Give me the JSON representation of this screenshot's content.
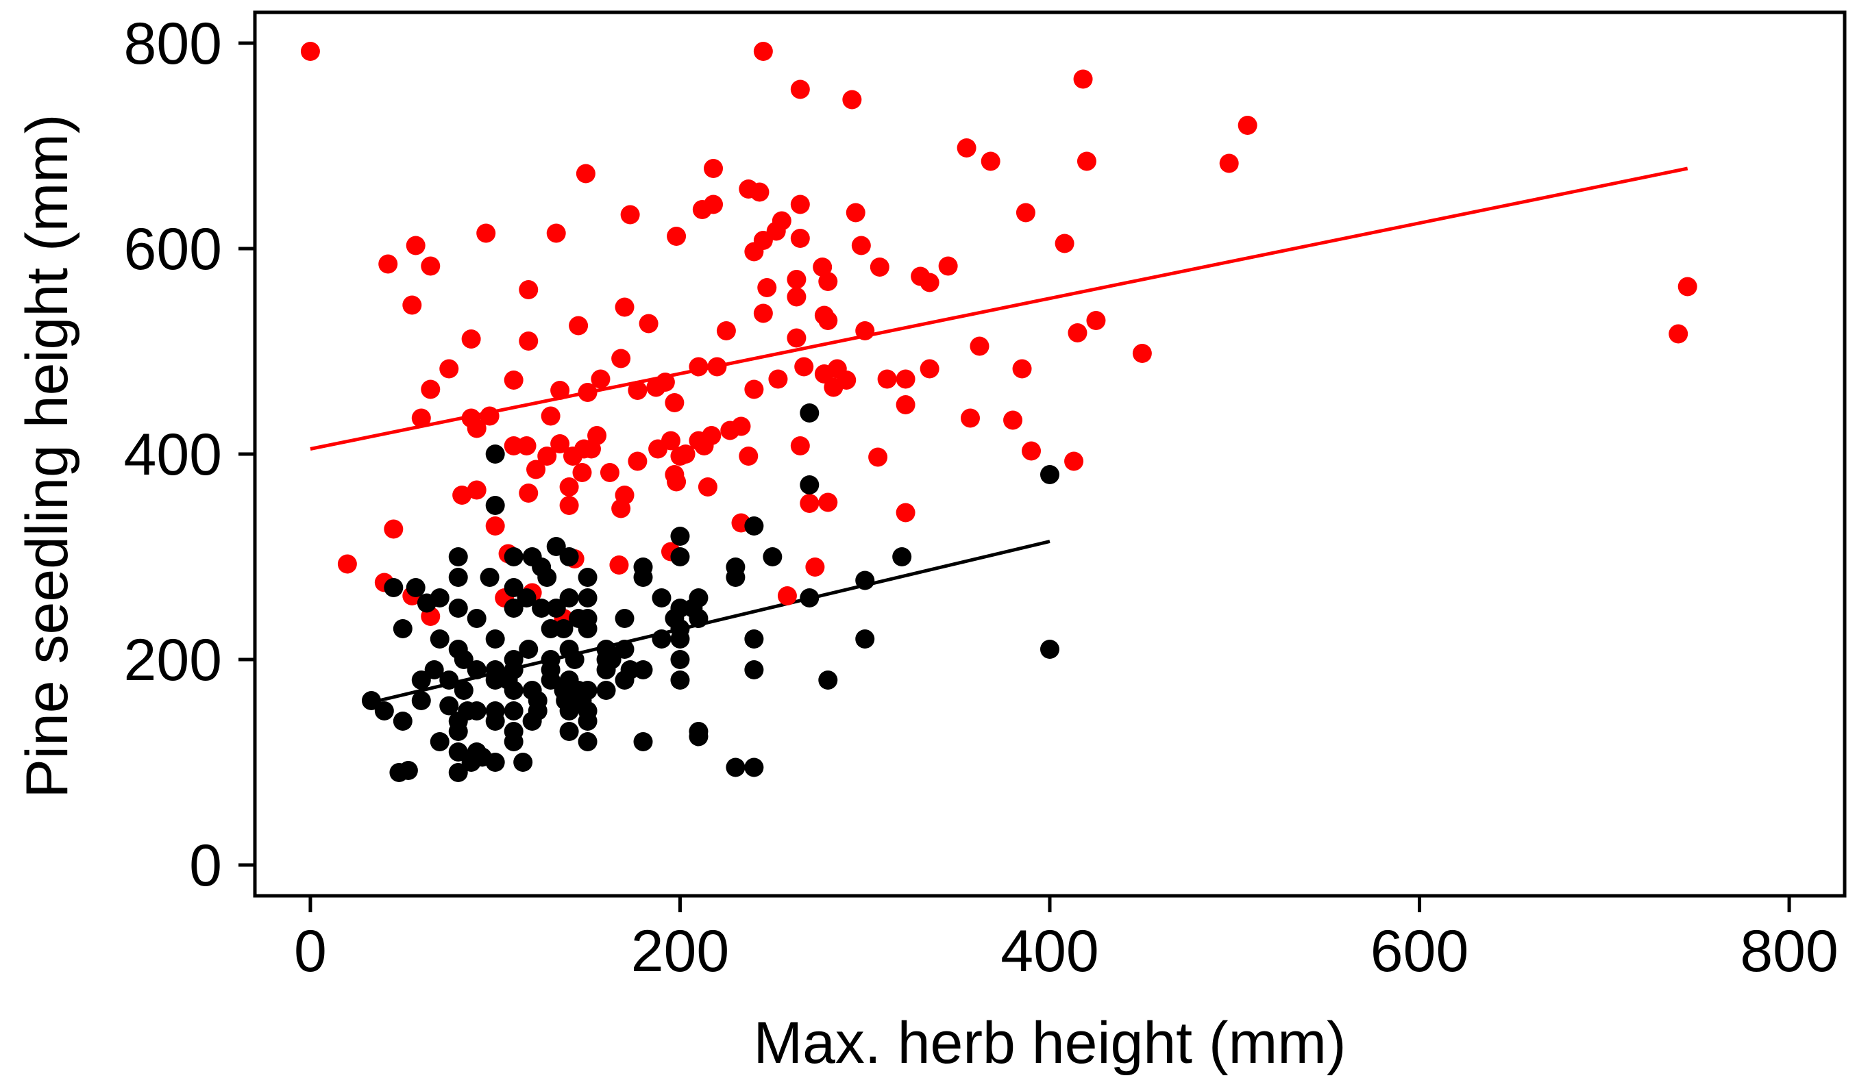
{
  "chart_data": {
    "type": "scatter",
    "title": "",
    "xlabel": "Max. herb height (mm)",
    "ylabel": "Pine seedling height (mm)",
    "xlim": [
      -30,
      830
    ],
    "ylim": [
      -30,
      830
    ],
    "x_ticks": [
      0,
      200,
      400,
      600,
      800
    ],
    "y_ticks": [
      0,
      200,
      400,
      600,
      800
    ],
    "x_tick_labels": [
      "0",
      "200",
      "400",
      "600",
      "800"
    ],
    "y_tick_labels": [
      "0",
      "200",
      "400",
      "600",
      "800"
    ],
    "grid": false,
    "legend": "none",
    "series": [
      {
        "color": "#ff0000",
        "points": [
          [
            0,
            792
          ],
          [
            20,
            293
          ],
          [
            40,
            275
          ],
          [
            42,
            585
          ],
          [
            45,
            327
          ],
          [
            55,
            262
          ],
          [
            55,
            545
          ],
          [
            57,
            603
          ],
          [
            60,
            435
          ],
          [
            65,
            583
          ],
          [
            65,
            242
          ],
          [
            65,
            463
          ],
          [
            75,
            483
          ],
          [
            82,
            360
          ],
          [
            87,
            512
          ],
          [
            87,
            435
          ],
          [
            90,
            425
          ],
          [
            90,
            365
          ],
          [
            95,
            615
          ],
          [
            97,
            437
          ],
          [
            100,
            330
          ],
          [
            105,
            260
          ],
          [
            107,
            303
          ],
          [
            110,
            472
          ],
          [
            110,
            408
          ],
          [
            117,
            408
          ],
          [
            118,
            362
          ],
          [
            118,
            560
          ],
          [
            118,
            510
          ],
          [
            120,
            265
          ],
          [
            122,
            385
          ],
          [
            128,
            398
          ],
          [
            130,
            437
          ],
          [
            133,
            615
          ],
          [
            135,
            462
          ],
          [
            135,
            410
          ],
          [
            137,
            240
          ],
          [
            140,
            350
          ],
          [
            140,
            368
          ],
          [
            142,
            398
          ],
          [
            143,
            298
          ],
          [
            145,
            525
          ],
          [
            147,
            382
          ],
          [
            148,
            405
          ],
          [
            149,
            673
          ],
          [
            150,
            460
          ],
          [
            152,
            405
          ],
          [
            155,
            418
          ],
          [
            157,
            473
          ],
          [
            162,
            382
          ],
          [
            167,
            292
          ],
          [
            168,
            493
          ],
          [
            168,
            347
          ],
          [
            170,
            543
          ],
          [
            170,
            360
          ],
          [
            173,
            633
          ],
          [
            177,
            393
          ],
          [
            177,
            462
          ],
          [
            183,
            527
          ],
          [
            187,
            465
          ],
          [
            188,
            405
          ],
          [
            192,
            470
          ],
          [
            195,
            413
          ],
          [
            195,
            305
          ],
          [
            197,
            450
          ],
          [
            197,
            380
          ],
          [
            198,
            373
          ],
          [
            198,
            612
          ],
          [
            200,
            398
          ],
          [
            203,
            400
          ],
          [
            210,
            485
          ],
          [
            210,
            413
          ],
          [
            212,
            638
          ],
          [
            213,
            408
          ],
          [
            215,
            368
          ],
          [
            217,
            418
          ],
          [
            218,
            678
          ],
          [
            218,
            643
          ],
          [
            220,
            485
          ],
          [
            225,
            520
          ],
          [
            227,
            423
          ],
          [
            233,
            427
          ],
          [
            233,
            333
          ],
          [
            237,
            658
          ],
          [
            237,
            398
          ],
          [
            240,
            597
          ],
          [
            240,
            463
          ],
          [
            243,
            655
          ],
          [
            245,
            537
          ],
          [
            245,
            608
          ],
          [
            245,
            792
          ],
          [
            247,
            562
          ],
          [
            252,
            617
          ],
          [
            253,
            473
          ],
          [
            255,
            627
          ],
          [
            258,
            262
          ],
          [
            263,
            513
          ],
          [
            263,
            570
          ],
          [
            263,
            553
          ],
          [
            265,
            643
          ],
          [
            265,
            755
          ],
          [
            265,
            610
          ],
          [
            265,
            408
          ],
          [
            267,
            485
          ],
          [
            270,
            352
          ],
          [
            273,
            290
          ],
          [
            277,
            582
          ],
          [
            278,
            535
          ],
          [
            278,
            478
          ],
          [
            280,
            353
          ],
          [
            280,
            568
          ],
          [
            280,
            530
          ],
          [
            283,
            465
          ],
          [
            285,
            483
          ],
          [
            290,
            472
          ],
          [
            293,
            745
          ],
          [
            295,
            635
          ],
          [
            298,
            603
          ],
          [
            300,
            520
          ],
          [
            307,
            397
          ],
          [
            308,
            582
          ],
          [
            312,
            473
          ],
          [
            322,
            448
          ],
          [
            322,
            473
          ],
          [
            322,
            343
          ],
          [
            330,
            573
          ],
          [
            335,
            567
          ],
          [
            335,
            483
          ],
          [
            345,
            583
          ],
          [
            355,
            698
          ],
          [
            357,
            435
          ],
          [
            362,
            505
          ],
          [
            368,
            685
          ],
          [
            380,
            433
          ],
          [
            385,
            483
          ],
          [
            387,
            635
          ],
          [
            390,
            403
          ],
          [
            408,
            605
          ],
          [
            413,
            393
          ],
          [
            415,
            518
          ],
          [
            418,
            765
          ],
          [
            420,
            685
          ],
          [
            425,
            530
          ],
          [
            450,
            498
          ],
          [
            497,
            683
          ],
          [
            507,
            720
          ],
          [
            740,
            517
          ],
          [
            745,
            563
          ]
        ]
      },
      {
        "color": "#000000",
        "points": [
          [
            33,
            160
          ],
          [
            40,
            150
          ],
          [
            45,
            270
          ],
          [
            48,
            90
          ],
          [
            50,
            140
          ],
          [
            50,
            230
          ],
          [
            53,
            92
          ],
          [
            57,
            270
          ],
          [
            60,
            180
          ],
          [
            60,
            160
          ],
          [
            63,
            255
          ],
          [
            67,
            190
          ],
          [
            70,
            260
          ],
          [
            70,
            220
          ],
          [
            70,
            120
          ],
          [
            75,
            155
          ],
          [
            75,
            180
          ],
          [
            80,
            300
          ],
          [
            80,
            280
          ],
          [
            80,
            250
          ],
          [
            80,
            210
          ],
          [
            80,
            140
          ],
          [
            80,
            130
          ],
          [
            80,
            110
          ],
          [
            80,
            90
          ],
          [
            83,
            170
          ],
          [
            83,
            200
          ],
          [
            85,
            150
          ],
          [
            87,
            100
          ],
          [
            90,
            240
          ],
          [
            90,
            190
          ],
          [
            90,
            150
          ],
          [
            90,
            110
          ],
          [
            93,
            105
          ],
          [
            97,
            280
          ],
          [
            100,
            400
          ],
          [
            100,
            350
          ],
          [
            100,
            220
          ],
          [
            100,
            190
          ],
          [
            100,
            180
          ],
          [
            100,
            150
          ],
          [
            100,
            140
          ],
          [
            100,
            100
          ],
          [
            107,
            180
          ],
          [
            110,
            300
          ],
          [
            110,
            270
          ],
          [
            110,
            250
          ],
          [
            110,
            200
          ],
          [
            110,
            190
          ],
          [
            110,
            170
          ],
          [
            110,
            150
          ],
          [
            110,
            130
          ],
          [
            110,
            120
          ],
          [
            115,
            100
          ],
          [
            117,
            260
          ],
          [
            118,
            210
          ],
          [
            120,
            300
          ],
          [
            120,
            170
          ],
          [
            120,
            140
          ],
          [
            123,
            160
          ],
          [
            123,
            150
          ],
          [
            125,
            290
          ],
          [
            125,
            250
          ],
          [
            128,
            280
          ],
          [
            130,
            230
          ],
          [
            130,
            200
          ],
          [
            130,
            190
          ],
          [
            130,
            180
          ],
          [
            133,
            310
          ],
          [
            133,
            250
          ],
          [
            137,
            230
          ],
          [
            137,
            170
          ],
          [
            138,
            160
          ],
          [
            140,
            300
          ],
          [
            140,
            260
          ],
          [
            140,
            210
          ],
          [
            140,
            180
          ],
          [
            140,
            150
          ],
          [
            140,
            130
          ],
          [
            143,
            200
          ],
          [
            145,
            240
          ],
          [
            145,
            170
          ],
          [
            147,
            160
          ],
          [
            150,
            280
          ],
          [
            150,
            260
          ],
          [
            150,
            240
          ],
          [
            150,
            230
          ],
          [
            150,
            170
          ],
          [
            150,
            150
          ],
          [
            150,
            140
          ],
          [
            150,
            120
          ],
          [
            160,
            210
          ],
          [
            160,
            200
          ],
          [
            160,
            190
          ],
          [
            160,
            170
          ],
          [
            163,
            200
          ],
          [
            170,
            210
          ],
          [
            170,
            180
          ],
          [
            170,
            240
          ],
          [
            173,
            190
          ],
          [
            180,
            290
          ],
          [
            180,
            280
          ],
          [
            180,
            190
          ],
          [
            180,
            120
          ],
          [
            190,
            260
          ],
          [
            190,
            220
          ],
          [
            197,
            240
          ],
          [
            200,
            320
          ],
          [
            200,
            300
          ],
          [
            200,
            250
          ],
          [
            200,
            230
          ],
          [
            200,
            220
          ],
          [
            200,
            200
          ],
          [
            200,
            180
          ],
          [
            207,
            250
          ],
          [
            210,
            260
          ],
          [
            210,
            240
          ],
          [
            210,
            130
          ],
          [
            210,
            125
          ],
          [
            230,
            290
          ],
          [
            230,
            280
          ],
          [
            230,
            95
          ],
          [
            240,
            330
          ],
          [
            240,
            220
          ],
          [
            240,
            190
          ],
          [
            240,
            95
          ],
          [
            250,
            300
          ],
          [
            270,
            440
          ],
          [
            270,
            370
          ],
          [
            270,
            260
          ],
          [
            280,
            180
          ],
          [
            300,
            277
          ],
          [
            300,
            220
          ],
          [
            320,
            300
          ],
          [
            400,
            380
          ],
          [
            400,
            210
          ]
        ]
      }
    ],
    "fit_lines": [
      {
        "color": "#ff0000",
        "x": [
          0,
          745
        ],
        "y": [
          405,
          678
        ]
      },
      {
        "color": "#000000",
        "x": [
          37,
          400
        ],
        "y": [
          160,
          315
        ]
      }
    ]
  }
}
